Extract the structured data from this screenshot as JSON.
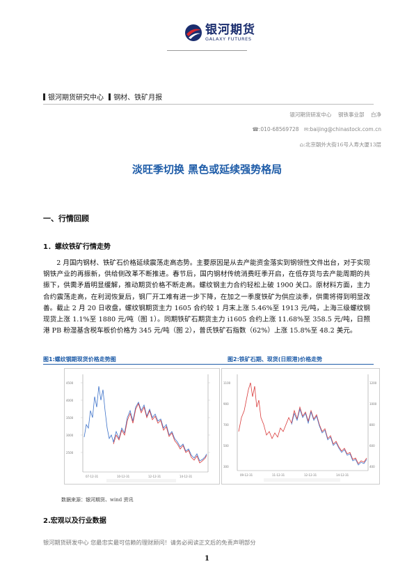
{
  "header": {
    "logo_cn": "银河期货",
    "logo_en": "GALAXY FUTURES"
  },
  "breadcrumb": {
    "part1": "银河期货研究中心",
    "part2": "钢材、铁矿月报"
  },
  "author_block": {
    "dept": "银河期货研发中心",
    "group": "钢铁事业部",
    "author": "白净",
    "phone": "010-68569728",
    "email": "baijing@chinastock.com.cn",
    "address": "北京朝外大街16号人寿大厦13层",
    "phone_icon": "phone-icon",
    "email_icon": "mail-icon",
    "address_icon": "address-icon"
  },
  "title": "淡旺季切换 黑色或延续强势格局",
  "section1": "一、行情回顾",
  "subsection1": "1．螺纹铁矿行情走势",
  "paragraph": "2 月国内钢材、铁矿石价格延续震荡走高态势。主要原因是从去产能资金落实到钢领性文件出台，对于实现钢铁产业的再振新，供给侧改革不断推进。春节后，国内钢材传统消费旺季开启，在低存货与去产能周期的共振下，供需矛盾明显缓解，推动期货价格不断走高。螺纹钢主力合约轻松上破 1900 关口。原材料方面，主力合约震荡走高，在利润恢复后，钢厂开工难有进一步下降，在加之一季度铁矿为供应淡季，供需将得到明显改善。截止 2 月 20 日收盘，螺纹钢期货主力 1605 合约较 1 月末上涨 5.46%至 1913 元/吨，上海三级螺纹钢现货上涨 1.1%至 1880 元/吨（图 1）。同期铁矿石期货主力 i1605 合约上涨 11.68%至 358.5 元/吨，日照港 PB 粉湿基含税车板价价格为 345 元/吨（图 2），普氏铁矿石指数（62%）上涨 15.8%至 48.2 美元。",
  "fig1_caption": "图1:螺纹钢期现货价格走势图",
  "fig2_caption": "图2:铁矿石期、现货(日照港)价格走势",
  "source": "数据来源：银河期货、wind 资讯",
  "subsection2": "2.宏观以及行业数据",
  "footer": "银河期货研发中心  您最忠实最可信赖的理财顾问！请务必阅读正文后的免责声明部分",
  "page_number": "1",
  "colors": {
    "brand_blue": "#1a2d6e",
    "title_blue": "#1e5ca8",
    "brand_red": "#d6272e",
    "series_red": "#d93a3a",
    "series_blue": "#3a70c8"
  }
}
